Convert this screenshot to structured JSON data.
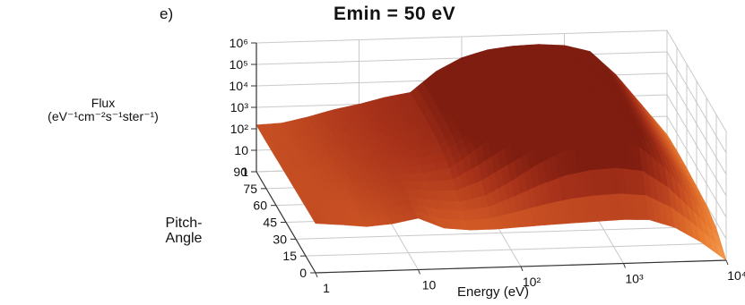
{
  "panel_label": "e)",
  "chart_data": {
    "type": "surface-3d",
    "title": "Emin = 50 eV",
    "zlabel_lines": [
      "Flux",
      "(eV⁻¹cm⁻²s⁻¹ster⁻¹)"
    ],
    "ylabel_lines": [
      "Pitch-",
      "Angle"
    ],
    "xlabel": "Energy (eV)",
    "x_scale": "log",
    "z_scale": "log",
    "xlim": [
      1,
      10000
    ],
    "ylim": [
      0,
      90
    ],
    "zlim": [
      1,
      1000000
    ],
    "x_ticks": [
      {
        "value": 1,
        "label": "1"
      },
      {
        "value": 10,
        "label": "10"
      },
      {
        "value": 100,
        "label": "10²"
      },
      {
        "value": 1000,
        "label": "10³"
      },
      {
        "value": 10000,
        "label": "10⁴"
      }
    ],
    "y_ticks": [
      {
        "value": 90,
        "label": "90"
      },
      {
        "value": 75,
        "label": "75"
      },
      {
        "value": 60,
        "label": "60"
      },
      {
        "value": 45,
        "label": "45"
      },
      {
        "value": 30,
        "label": "30"
      },
      {
        "value": 15,
        "label": "15"
      },
      {
        "value": 0,
        "label": "0"
      }
    ],
    "z_ticks": [
      {
        "value": 1,
        "label": "1"
      },
      {
        "value": 10,
        "label": "10"
      },
      {
        "value": 100,
        "label": "10²"
      },
      {
        "value": 1000,
        "label": "10³"
      },
      {
        "value": 10000,
        "label": "10⁴"
      },
      {
        "value": 100000,
        "label": "10⁵"
      },
      {
        "value": 1000000,
        "label": "10⁶"
      }
    ],
    "grid": true,
    "colormap": [
      "#fbd19a",
      "#f5a055",
      "#e87a2f",
      "#cc5424",
      "#a8321a",
      "#7e1d10"
    ],
    "surface": {
      "energy": [
        1,
        1.78,
        3.16,
        5.62,
        10,
        17.8,
        31.6,
        56.2,
        100,
        178,
        316,
        562,
        1000,
        1780,
        3160,
        5620,
        10000
      ],
      "pitch_angle": [
        0,
        15,
        30,
        45,
        60,
        75,
        90
      ],
      "flux": [
        [
          200,
          160,
          120,
          150,
          250,
          80,
          60,
          60,
          70,
          80,
          90,
          100,
          110,
          100,
          40,
          8,
          1
        ],
        [
          190,
          160,
          150,
          250,
          450,
          260,
          200,
          350,
          1500,
          8000,
          30000,
          60000,
          70000,
          40000,
          4000,
          150,
          5
        ],
        [
          180,
          170,
          200,
          400,
          700,
          800,
          1200,
          8000,
          50000,
          150000,
          200000,
          220000,
          200000,
          100000,
          8000,
          300,
          10
        ],
        [
          170,
          180,
          250,
          500,
          900,
          1500,
          2500,
          20000,
          90000,
          200000,
          280000,
          300000,
          250000,
          120000,
          9000,
          350,
          12
        ],
        [
          160,
          190,
          300,
          600,
          1000,
          1800,
          3000,
          25000,
          100000,
          220000,
          300000,
          330000,
          270000,
          130000,
          10000,
          380,
          14
        ],
        [
          150,
          180,
          320,
          650,
          1100,
          2000,
          3200,
          27000,
          110000,
          230000,
          320000,
          350000,
          290000,
          140000,
          11000,
          400,
          15
        ],
        [
          150,
          170,
          300,
          600,
          1000,
          1900,
          3000,
          26000,
          105000,
          225000,
          310000,
          340000,
          280000,
          135000,
          10500,
          390,
          14
        ]
      ]
    }
  }
}
